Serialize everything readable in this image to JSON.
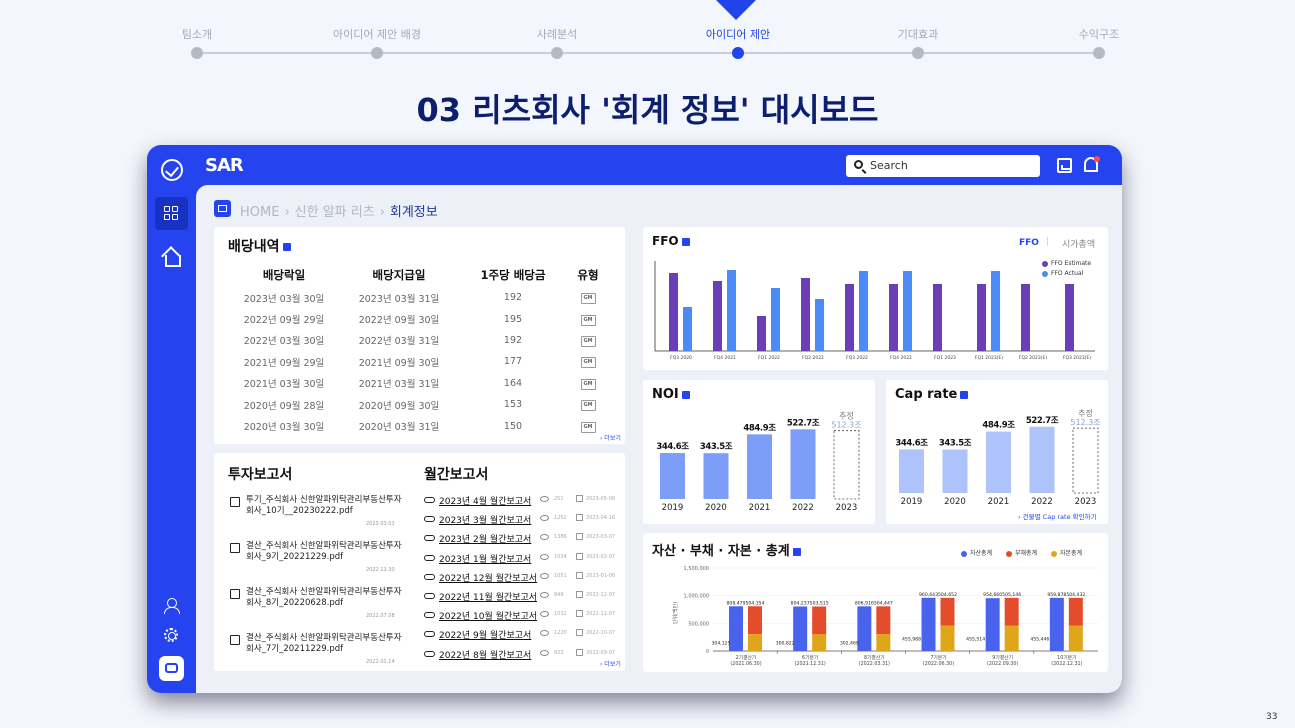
{
  "steps": [
    {
      "label": "팀소개",
      "active": false
    },
    {
      "label": "아이디어 제안 배경",
      "active": false
    },
    {
      "label": "사례분석",
      "active": false
    },
    {
      "label": "아이디어 제안",
      "active": true
    },
    {
      "label": "기대효과",
      "active": false
    },
    {
      "label": "수익구조",
      "active": false
    }
  ],
  "main_title": "03 리츠회사 '회계 정보' 대시보드",
  "app": {
    "logo": "SAR",
    "search_placeholder": "Search"
  },
  "breadcrumb": {
    "home": "HOME",
    "parent": "신한 알파 리츠",
    "current": "회계정보",
    "sep": "›"
  },
  "dividend": {
    "title": "배당내역",
    "headers": [
      "배당락일",
      "배당지급일",
      "1주당 배당금",
      "유형"
    ],
    "rows": [
      [
        "2023년 03월 30일",
        "2023년 03월 31일",
        "192",
        "GM"
      ],
      [
        "2022년 09월 29일",
        "2022년 09월 30일",
        "195",
        "GM"
      ],
      [
        "2022년 03월 30일",
        "2022년 03월 31일",
        "192",
        "GM"
      ],
      [
        "2021년 09월 29일",
        "2021년 09월 30일",
        "177",
        "GM"
      ],
      [
        "2021년 03월 30일",
        "2021년 03월 31일",
        "164",
        "GM"
      ],
      [
        "2020년 09월 28일",
        "2020년 09월 30일",
        "153",
        "GM"
      ],
      [
        "2020년 03월 30일",
        "2020년 03월 31일",
        "150",
        "GM"
      ]
    ],
    "more": "› 더보기"
  },
  "reports": {
    "invest_title": "투자보고서",
    "monthly_title": "월간보고서",
    "invest_items": [
      {
        "text": "투기_주식회사 신한알파위탁관리부동산투자회사_10기__20230222.pdf",
        "date": "2023.03.03"
      },
      {
        "text": "결산_주식회사 신한알파위탁관리부동산투자회사_9기_20221229.pdf",
        "date": "2022.12.30"
      },
      {
        "text": "결산_주식회사 신한알파위탁관리부동산투자회사_8기_20220628.pdf",
        "date": "2022.07.08"
      },
      {
        "text": "결산_주식회사 신한알파위탁관리부동산투자회사_7기_20211229.pdf",
        "date": "2022.01.14"
      }
    ],
    "monthly_items": [
      {
        "title": "2023년 4월 월간보고서",
        "views": "251",
        "date": "2023-05-08"
      },
      {
        "title": "2023년 3월 월간보고서",
        "views": "1252",
        "date": "2023-04-16"
      },
      {
        "title": "2023년 2월 월간보고서",
        "views": "1386",
        "date": "2023-03-07"
      },
      {
        "title": "2023년 1월 월간보고서",
        "views": "1034",
        "date": "2023-02-07"
      },
      {
        "title": "2022년 12월 월간보고서",
        "views": "1051",
        "date": "2023-01-06"
      },
      {
        "title": "2022년 11월 월간보고서",
        "views": "849",
        "date": "2022-12-07"
      },
      {
        "title": "2022년 10월 월간보고서",
        "views": "1032",
        "date": "2022-11-07"
      },
      {
        "title": "2022년 9월 월간보고서",
        "views": "1220",
        "date": "2022-10-07"
      },
      {
        "title": "2022년 8월 월간보고서",
        "views": "922",
        "date": "2022-09-07"
      }
    ],
    "more": "› 더보기"
  },
  "ffo": {
    "title": "FFO",
    "toggle_active": "FFO",
    "toggle_inactive": "시가총액",
    "colors": {
      "estimate": "#6a3fb5",
      "actual": "#4b8bf5"
    },
    "chart_data": {
      "type": "bar",
      "categories": [
        "FQ3 2020",
        "FQ4 2021",
        "FQ1 2022",
        "FQ2 2022",
        "FQ3 2022",
        "FQ4 2022",
        "FQ1 2023",
        "FQ1 2023(E)",
        "FQ2 2023(E)",
        "FQ3 2023(E)"
      ],
      "series": [
        {
          "name": "FFO Estimate",
          "values": [
            78,
            70,
            35,
            73,
            67,
            67,
            67,
            67,
            67,
            67
          ]
        },
        {
          "name": "FFO Actual",
          "values": [
            44,
            81,
            63,
            52,
            80,
            80,
            null,
            80,
            null,
            null
          ]
        }
      ],
      "ylim": [
        0,
        90
      ]
    }
  },
  "noi": {
    "title": "NOI",
    "color": "#7c9ef8",
    "chart_data": {
      "type": "bar",
      "categories": [
        "2019",
        "2020",
        "2021",
        "2022",
        "2023"
      ],
      "values": [
        344.6,
        343.5,
        484.9,
        522.7,
        512.3
      ],
      "labels": [
        "344.6조",
        "343.5조",
        "484.9조",
        "522.7조",
        "512.3조"
      ],
      "estimate_label": "추정",
      "ylim": [
        0,
        600
      ]
    }
  },
  "caprate": {
    "title": "Cap rate",
    "color": "#aec3fb",
    "link": "› 건물별 Cap rate 확인하기",
    "chart_data": {
      "type": "bar",
      "categories": [
        "2019",
        "2020",
        "2021",
        "2022",
        "2023"
      ],
      "values": [
        344.6,
        343.5,
        484.9,
        522.7,
        512.3
      ],
      "labels": [
        "344.6조",
        "343.5조",
        "484.9조",
        "522.7조",
        "512.3조"
      ],
      "estimate_label": "추정",
      "ylim": [
        0,
        600
      ]
    }
  },
  "balance": {
    "title": "자산 · 부채 · 자본 · 총계",
    "ylabel": "단위(백만)",
    "colors": {
      "asset": "#4a63ee",
      "debt": "#e54c2b",
      "equity": "#e0a619"
    },
    "chart_data": {
      "type": "bar",
      "categories": [
        "2기결산기\n(2021.06.30)",
        "6기분기\n(2021.12.31)",
        "8기결산기\n(2022.03.31)",
        "7기분기\n(2022.06.30)",
        "9기결산기\n(2022.09.30)",
        "10기분기\n(2022.12.31)"
      ],
      "series": [
        {
          "name": "자산총계",
          "values": [
            808479,
            804237,
            806916,
            960643,
            954660,
            959878
          ],
          "labels": [
            "808,479",
            "804,237",
            "806,916",
            "960,643",
            "954,660",
            "959,878"
          ]
        },
        {
          "name": "부채총계",
          "values": [
            504354,
            503515,
            504447,
            504652,
            505146,
            504432
          ],
          "labels": [
            "504,354",
            "503,515",
            "504,447",
            "504,652",
            "505,146",
            "504,432"
          ]
        },
        {
          "name": "자본총계",
          "values": [
            304125,
            300822,
            302469,
            455988,
            455514,
            455446
          ],
          "labels": [
            "304,125",
            "300,822",
            "302,469",
            "455,988",
            "455,514",
            "455,446"
          ]
        }
      ],
      "yticks": [
        0,
        500000,
        1000000,
        1500000
      ],
      "ytick_labels": [
        "0",
        "500,000",
        "1,000,000",
        "1,500,000"
      ],
      "ylim": [
        0,
        1500000
      ]
    }
  },
  "page_number": "33"
}
